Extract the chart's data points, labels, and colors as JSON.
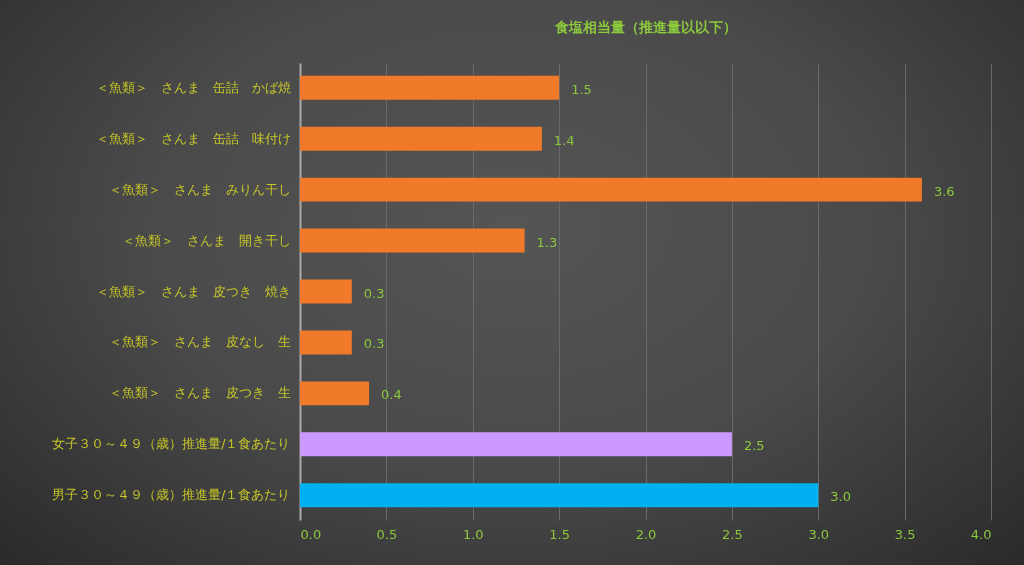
{
  "chart_data": {
    "type": "bar",
    "orientation": "horizontal",
    "title": "食塩相当量（推進量以以下）",
    "categories": [
      "＜魚類＞　さんま　缶詰　かば焼",
      "＜魚類＞　さんま　缶詰　味付け",
      "＜魚類＞　さんま　みりん干し",
      "＜魚類＞　さんま　開き干し",
      "＜魚類＞　さんま　皮つき　焼き",
      "＜魚類＞　さんま　皮なし　生",
      "＜魚類＞　さんま　皮つき　生",
      "女子３０～４９（歳）推進量/１食あたり",
      "男子３０～４９（歳）推進量/１食あたり"
    ],
    "values": [
      1.5,
      1.4,
      3.6,
      1.3,
      0.3,
      0.3,
      0.4,
      2.5,
      3.0
    ],
    "value_labels": [
      "1.5",
      "1.4",
      "3.6",
      "1.3",
      "0.3",
      "0.3",
      "0.4",
      "2.5",
      "3.0"
    ],
    "colors": [
      "#f07a2a",
      "#f07a2a",
      "#f07a2a",
      "#f07a2a",
      "#f07a2a",
      "#f07a2a",
      "#f07a2a",
      "#cc99ff",
      "#00b0f0"
    ],
    "xlim": [
      0,
      4
    ],
    "xticks": [
      {
        "value": 0,
        "label": "0.0"
      },
      {
        "value": 0.5,
        "label": "0.5"
      },
      {
        "value": 1,
        "label": "1.0"
      },
      {
        "value": 1.5,
        "label": "1.5"
      },
      {
        "value": 2,
        "label": "2.0"
      },
      {
        "value": 2.5,
        "label": "2.5"
      },
      {
        "value": 3,
        "label": "3.0"
      },
      {
        "value": 3.5,
        "label": "3.5"
      },
      {
        "value": 4,
        "label": "4.0"
      }
    ],
    "grid": "x"
  }
}
